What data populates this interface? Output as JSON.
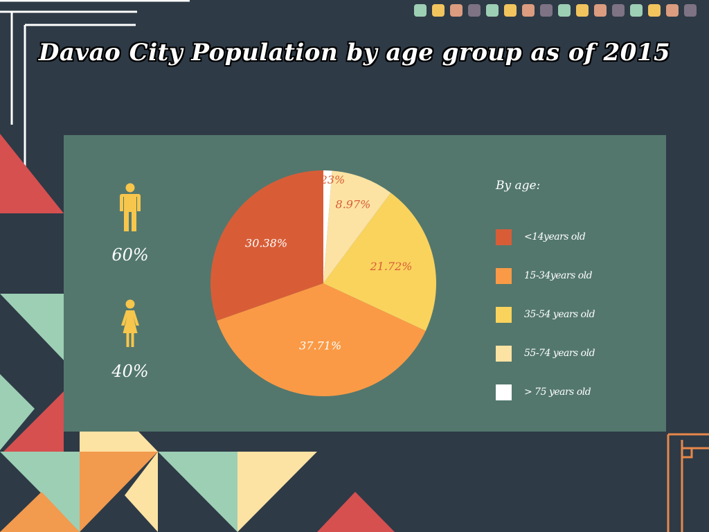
{
  "title": "Davao City Population by age group as of 2015",
  "colors": {
    "background": "#2e3a46",
    "panel": "#53776d",
    "icon": "#f7c64c"
  },
  "gender": {
    "male": {
      "icon": "man-icon",
      "percent": "60%"
    },
    "female": {
      "icon": "woman-icon",
      "percent": "40%"
    }
  },
  "legend_title": "By age:",
  "chart_data": {
    "type": "pie",
    "title": "",
    "slices": [
      {
        "label": "<14years old",
        "value": 30.38,
        "display": "30.38%",
        "color": "#d85d37"
      },
      {
        "label": "15-34years old",
        "value": 37.71,
        "display": "37.71%",
        "color": "#fa9a46"
      },
      {
        "label": "35-54 years old",
        "value": 21.72,
        "display": "21.72%",
        "color": "#fad35d"
      },
      {
        "label": "55-74 years old",
        "value": 8.97,
        "display": "8.97%",
        "color": "#fce3a3"
      },
      {
        "label": "> 75 years old",
        "value": 1.23,
        "display": "1.23%",
        "color": "#ffffff"
      }
    ],
    "label_colors": [
      "#ffffff",
      "#ffffff",
      "#d85d37",
      "#d85d37",
      "#d85d37"
    ],
    "legend_position": "right"
  },
  "decor_dot_colors": [
    "#9dcfb5",
    "#f2c45e",
    "#dc9c80",
    "#7d7384",
    "#9dcfb5",
    "#f2c45e",
    "#dc9c80",
    "#7d7384",
    "#9dcfb5",
    "#f2c45e",
    "#dc9c80",
    "#7d7384",
    "#9dcfb5",
    "#f2c45e",
    "#dc9c80",
    "#7d7384"
  ]
}
